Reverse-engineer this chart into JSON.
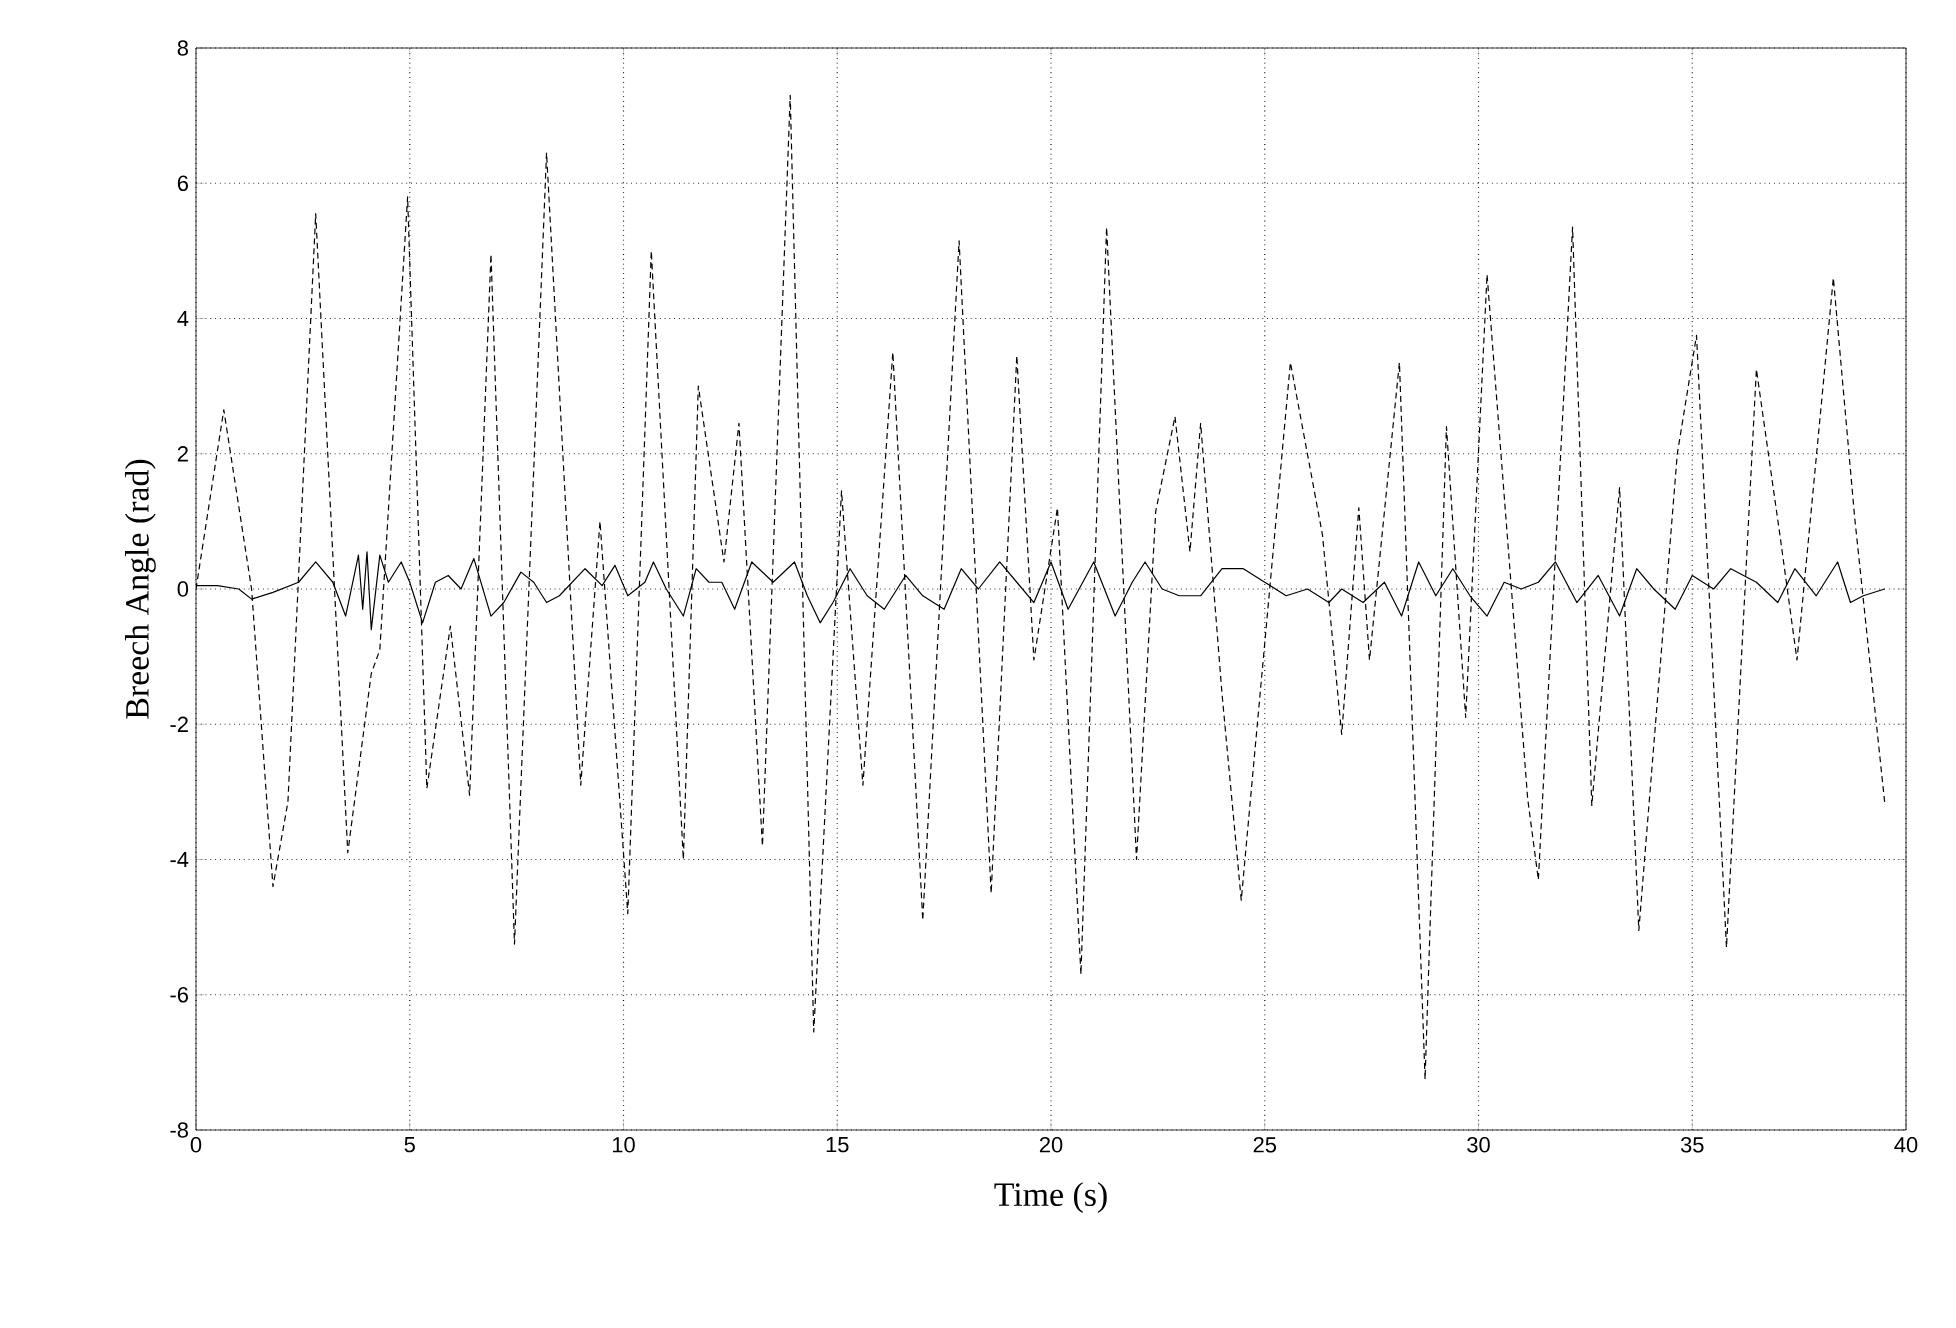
{
  "chart_data": {
    "type": "line",
    "xlabel": "Time (s)",
    "ylabel": "Breech Angle (rad)",
    "xlim": [
      0,
      40
    ],
    "ylim": [
      -8,
      8
    ],
    "xticks": [
      0,
      5,
      10,
      15,
      20,
      25,
      30,
      35,
      40
    ],
    "yticks": [
      -8,
      -6,
      -4,
      -2,
      0,
      2,
      4,
      6,
      8
    ],
    "grid": true,
    "marker": "none",
    "series": [
      {
        "color": "#000000",
        "line_style": "dotted",
        "x": [
          0,
          0.65,
          1.3,
          1.8,
          2.15,
          2.8,
          3.55,
          4.1,
          4.3,
          4.95,
          5.4,
          5.95,
          6.4,
          6.9,
          7.45,
          8.2,
          9.0,
          9.45,
          10.1,
          10.65,
          11.4,
          11.75,
          12.35,
          12.7,
          13.25,
          13.9,
          14.45,
          15.1,
          15.6,
          16.3,
          17.0,
          17.85,
          18.6,
          19.2,
          19.6,
          20.15,
          20.7,
          21.3,
          22.0,
          22.45,
          22.9,
          23.25,
          23.5,
          24.0,
          24.45,
          25.6,
          26.35,
          26.8,
          27.2,
          27.45,
          28.15,
          28.75,
          29.25,
          29.7,
          30.2,
          31.15,
          31.4,
          32.2,
          32.65,
          33.3,
          33.75,
          34.65,
          35.1,
          35.8,
          36.5,
          37.05,
          37.45,
          38.3,
          38.8,
          39.5
        ],
        "values": [
          0,
          2.65,
          0,
          -4.4,
          -3.15,
          5.55,
          -3.9,
          -1.25,
          -0.9,
          5.8,
          -2.95,
          -0.55,
          -3.05,
          4.95,
          -5.25,
          6.45,
          -2.9,
          1.0,
          -4.8,
          5.0,
          -4.0,
          3.0,
          0.4,
          2.45,
          -3.8,
          7.3,
          -6.55,
          1.45,
          -2.9,
          3.5,
          -4.9,
          5.15,
          -4.5,
          3.45,
          -1.05,
          1.2,
          -5.7,
          5.35,
          -4.0,
          1.15,
          2.55,
          0.55,
          2.45,
          -1.55,
          -4.6,
          3.35,
          0.8,
          -2.15,
          1.2,
          -1.05,
          3.35,
          -7.25,
          2.4,
          -1.9,
          4.65,
          -3.1,
          -4.3,
          5.35,
          -3.2,
          1.5,
          -5.05,
          2.0,
          3.75,
          -5.3,
          3.25,
          0.8,
          -1.05,
          4.6,
          1.05,
          -3.15
        ]
      },
      {
        "color": "#000000",
        "line_style": "solid",
        "x": [
          0,
          0.5,
          1,
          1.3,
          1.8,
          2.4,
          2.8,
          3.2,
          3.5,
          3.8,
          3.9,
          4.0,
          4.1,
          4.3,
          4.5,
          4.8,
          5.0,
          5.3,
          5.6,
          5.9,
          6.2,
          6.5,
          6.9,
          7.2,
          7.6,
          7.9,
          8.2,
          8.5,
          9.1,
          9.5,
          9.8,
          10.1,
          10.5,
          10.7,
          11.0,
          11.4,
          11.7,
          12.0,
          12.3,
          12.6,
          13.0,
          13.5,
          14.0,
          14.3,
          14.6,
          14.9,
          15.3,
          15.7,
          16.1,
          16.6,
          17.0,
          17.5,
          17.9,
          18.3,
          18.8,
          19.2,
          19.6,
          20.0,
          20.4,
          21.0,
          21.5,
          21.9,
          22.2,
          22.6,
          23.0,
          23.5,
          24.0,
          24.5,
          25.0,
          25.5,
          26.0,
          26.5,
          26.8,
          27.3,
          27.8,
          28.2,
          28.6,
          29.0,
          29.4,
          29.8,
          30.2,
          30.6,
          31.0,
          31.4,
          31.8,
          32.3,
          32.8,
          33.3,
          33.7,
          34.1,
          34.6,
          35.0,
          35.5,
          35.9,
          36.5,
          37.0,
          37.4,
          37.9,
          38.4,
          38.7,
          39.0,
          39.5
        ],
        "values": [
          0.05,
          0.05,
          0,
          -0.15,
          -0.05,
          0.1,
          0.4,
          0.1,
          -0.4,
          0.5,
          -0.3,
          0.55,
          -0.6,
          0.5,
          0.1,
          0.4,
          0.1,
          -0.5,
          0.1,
          0.2,
          0,
          0.45,
          -0.4,
          -0.2,
          0.25,
          0.1,
          -0.2,
          -0.1,
          0.3,
          0.05,
          0.35,
          -0.1,
          0.1,
          0.4,
          0,
          -0.4,
          0.3,
          0.1,
          0.1,
          -0.3,
          0.4,
          0.1,
          0.4,
          -0.1,
          -0.5,
          -0.2,
          0.3,
          -0.1,
          -0.3,
          0.2,
          -0.1,
          -0.3,
          0.3,
          0,
          0.4,
          0.1,
          -0.2,
          0.4,
          -0.3,
          0.4,
          -0.4,
          0.1,
          0.4,
          0,
          -0.1,
          -0.1,
          0.3,
          0.3,
          0.1,
          -0.1,
          0,
          -0.2,
          0,
          -0.2,
          0.1,
          -0.4,
          0.4,
          -0.1,
          0.3,
          -0.1,
          -0.4,
          0.1,
          0,
          0.1,
          0.4,
          -0.2,
          0.2,
          -0.4,
          0.3,
          0,
          -0.3,
          0.2,
          0,
          0.3,
          0.1,
          -0.2,
          0.3,
          -0.1,
          0.4,
          -0.2,
          -0.1,
          0
        ]
      }
    ]
  }
}
